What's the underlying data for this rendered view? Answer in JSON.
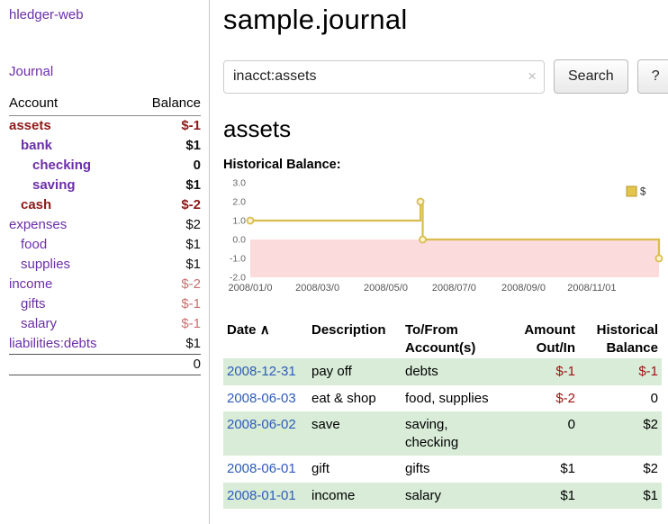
{
  "app": {
    "brand": "hledger-web",
    "nav_journal": "Journal"
  },
  "sidebar": {
    "headers": {
      "account": "Account",
      "balance": "Balance"
    },
    "accounts": [
      {
        "name": "assets",
        "indent": 0,
        "bold": true,
        "name_color": "red",
        "balance": "$-1",
        "balance_color": "red"
      },
      {
        "name": "bank",
        "indent": 1,
        "bold": true,
        "name_color": "purple",
        "balance": "$1",
        "balance_color": "dark"
      },
      {
        "name": "checking",
        "indent": 2,
        "bold": true,
        "name_color": "purple",
        "balance": "0",
        "balance_color": "dark"
      },
      {
        "name": "saving",
        "indent": 2,
        "bold": true,
        "name_color": "purple",
        "balance": "$1",
        "balance_color": "dark"
      },
      {
        "name": "cash",
        "indent": 1,
        "bold": true,
        "name_color": "red",
        "balance": "$-2",
        "balance_color": "red"
      },
      {
        "name": "expenses",
        "indent": 0,
        "bold": false,
        "name_color": "purple",
        "balance": "$2",
        "balance_color": "dark"
      },
      {
        "name": "food",
        "indent": 1,
        "bold": false,
        "name_color": "purple",
        "balance": "$1",
        "balance_color": "dark"
      },
      {
        "name": "supplies",
        "indent": 1,
        "bold": false,
        "name_color": "purple",
        "balance": "$1",
        "balance_color": "dark"
      },
      {
        "name": "income",
        "indent": 0,
        "bold": false,
        "name_color": "purple",
        "balance": "$-2",
        "balance_color": "lightred"
      },
      {
        "name": "gifts",
        "indent": 1,
        "bold": false,
        "name_color": "purple",
        "balance": "$-1",
        "balance_color": "lightred"
      },
      {
        "name": "salary",
        "indent": 1,
        "bold": false,
        "name_color": "purple",
        "balance": "$-1",
        "balance_color": "lightred"
      },
      {
        "name": "liabilities:debts",
        "indent": 0,
        "bold": false,
        "name_color": "purple",
        "balance": "$1",
        "balance_color": "dark"
      }
    ],
    "total": "0"
  },
  "main": {
    "title": "sample.journal",
    "search": {
      "value": "inacct:assets",
      "clear_icon": "×",
      "button_label": "Search",
      "help_label": "?"
    },
    "heading": "assets",
    "chart_label": "Historical Balance:"
  },
  "chart_data": {
    "type": "line",
    "title": "Historical Balance",
    "legend": [
      {
        "label": "$",
        "color": "#e3c44c"
      }
    ],
    "ylim": [
      -2.0,
      3.0
    ],
    "yticks": [
      "3.0",
      "2.0",
      "1.0",
      "0.0",
      "-1.0",
      "-2.0"
    ],
    "x_domain_days": [
      0,
      365
    ],
    "xticks": [
      {
        "day": 0,
        "label": "2008/01/0"
      },
      {
        "day": 60,
        "label": "2008/03/0"
      },
      {
        "day": 121,
        "label": "2008/05/0"
      },
      {
        "day": 182,
        "label": "2008/07/0"
      },
      {
        "day": 244,
        "label": "2008/09/0"
      },
      {
        "day": 305,
        "label": "2008/11/01"
      }
    ],
    "series": [
      {
        "name": "$",
        "line_color": "#d9bd4e",
        "points_day_value": [
          [
            0,
            1
          ],
          [
            152,
            1
          ],
          [
            152,
            2
          ],
          [
            154,
            2
          ],
          [
            154,
            0
          ],
          [
            365,
            0
          ],
          [
            365,
            -1
          ]
        ],
        "markers_day_value": [
          [
            0,
            1
          ],
          [
            152,
            2
          ],
          [
            154,
            0
          ],
          [
            365,
            -1
          ]
        ]
      }
    ],
    "negative_region_fill": "#fbdbdb"
  },
  "register": {
    "headers": [
      {
        "line1": "Date",
        "sort": "∧"
      },
      {
        "line1": "Description"
      },
      {
        "line1": "To/From",
        "line2": "Account(s)"
      },
      {
        "line1": "Amount",
        "line2": "Out/In"
      },
      {
        "line1": "Historical",
        "line2": "Balance"
      }
    ],
    "rows": [
      {
        "date": "2008-12-31",
        "description": "pay off",
        "accounts": "debts",
        "amount": "$-1",
        "amount_negative": true,
        "balance": "$-1",
        "balance_negative": true,
        "shaded": true
      },
      {
        "date": "2008-06-03",
        "description": "eat & shop",
        "accounts": "food, supplies",
        "amount": "$-2",
        "amount_negative": true,
        "balance": "0",
        "balance_negative": false,
        "shaded": false
      },
      {
        "date": "2008-06-02",
        "description": "save",
        "accounts": "saving, checking",
        "amount": "0",
        "amount_negative": false,
        "balance": "$2",
        "balance_negative": false,
        "shaded": true
      },
      {
        "date": "2008-06-01",
        "description": "gift",
        "accounts": "gifts",
        "amount": "$1",
        "amount_negative": false,
        "balance": "$2",
        "balance_negative": false,
        "shaded": false
      },
      {
        "date": "2008-01-01",
        "description": "income",
        "accounts": "salary",
        "amount": "$1",
        "amount_negative": false,
        "balance": "$1",
        "balance_negative": false,
        "shaded": true
      }
    ]
  }
}
